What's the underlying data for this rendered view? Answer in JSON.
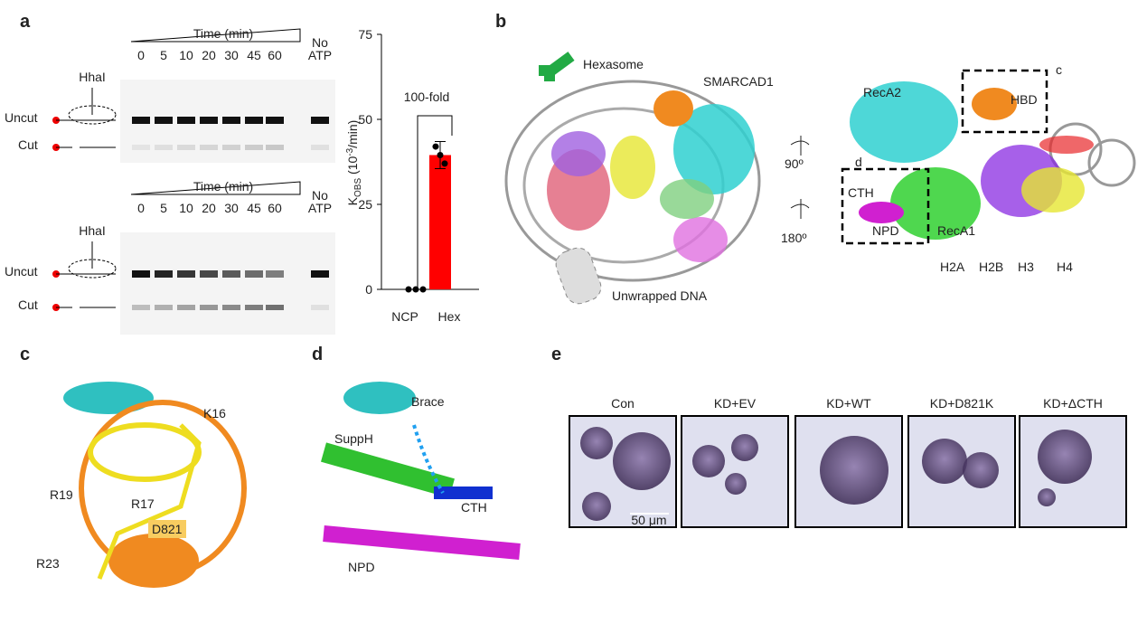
{
  "panels": {
    "a": {
      "label": "a",
      "gels": [
        {
          "time_label": "Time (min)",
          "times": [
            "0",
            "5",
            "10",
            "20",
            "30",
            "45",
            "60"
          ],
          "no_atp": [
            "No",
            "ATP"
          ],
          "enzyme": "HhaI",
          "rows": [
            "Uncut",
            "Cut"
          ]
        },
        {
          "time_label": "Time (min)",
          "times": [
            "0",
            "5",
            "10",
            "20",
            "30",
            "45",
            "60"
          ],
          "no_atp": [
            "No",
            "ATP"
          ],
          "enzyme": "HhaI",
          "rows": [
            "Uncut",
            "Cut"
          ]
        }
      ],
      "chart": {
        "type": "bar",
        "annotation": "100-fold",
        "ylabel": {
          "main": "K",
          "sub": "OBS",
          "mid": " (10",
          "sup": "-3",
          "end": "/min)"
        },
        "categories": [
          "NCP",
          "Hex"
        ],
        "values": [
          0,
          39.5
        ],
        "errors": [
          0,
          4
        ],
        "points": [
          [
            0,
            0,
            0
          ],
          [
            42,
            39.5,
            37
          ]
        ],
        "color": "#ff0000",
        "ylim": [
          0,
          75
        ],
        "yticks": [
          0,
          25,
          50,
          75
        ]
      }
    },
    "b": {
      "label": "b",
      "texts": [
        "Hexasome",
        "SMARCAD1",
        "Unwrapped DNA",
        "90º",
        "180º",
        "RecA2",
        "HBD",
        "c",
        "d",
        "CTH",
        "NPD",
        "RecA1"
      ],
      "histones": [
        {
          "name": "H2A",
          "color": "#e8262a"
        },
        {
          "name": "H2B",
          "color": "#f08cc8"
        },
        {
          "name": "H3",
          "color": "#8a2be2"
        },
        {
          "name": "H4",
          "color": "#e6e632"
        }
      ]
    },
    "c": {
      "label": "c",
      "residues": [
        "K16",
        "R19",
        "R17",
        "D821",
        "R23"
      ]
    },
    "d": {
      "label": "d",
      "texts": [
        "Brace",
        "SuppH",
        "CTH",
        "NPD"
      ]
    },
    "e": {
      "label": "e",
      "conditions": [
        "Con",
        "KD+EV",
        "KD+WT",
        "KD+D821K",
        "KD+ΔCTH"
      ],
      "scale": "50 μm"
    }
  }
}
